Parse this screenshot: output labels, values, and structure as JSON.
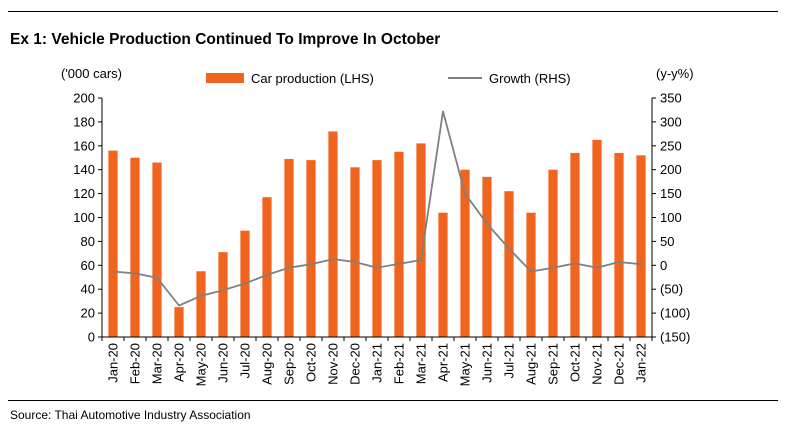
{
  "title": "Ex 1: Vehicle Production Continued To Improve In October",
  "source": "Source: Thai Automotive Industry Association",
  "colors": {
    "bar": "#f0641e",
    "line": "#808080",
    "axis": "#000000"
  },
  "chart_data": {
    "type": "bar",
    "title": "Ex 1: Vehicle Production Continued To Improve In October",
    "left_axis_unit": "('000 cars)",
    "right_axis_unit": "(y-y%)",
    "categories": [
      "Jan-20",
      "Feb-20",
      "Mar-20",
      "Apr-20",
      "May-20",
      "Jun-20",
      "Jul-20",
      "Aug-20",
      "Sep-20",
      "Oct-20",
      "Nov-20",
      "Dec-20",
      "Jan-21",
      "Feb-21",
      "Mar-21",
      "Apr-21",
      "May-21",
      "Jun-21",
      "Jul-21",
      "Aug-21",
      "Sep-21",
      "Oct-21",
      "Nov-21",
      "Dec-21",
      "Jan-22"
    ],
    "left_ylim": [
      0,
      200
    ],
    "left_ticks": [
      "0",
      "20",
      "40",
      "60",
      "80",
      "100",
      "120",
      "140",
      "160",
      "180",
      "200"
    ],
    "right_ylim": [
      -150,
      350
    ],
    "right_ticks": [
      "(150)",
      "(100)",
      "(50)",
      "0",
      "50",
      "100",
      "150",
      "200",
      "250",
      "300",
      "350"
    ],
    "legend_position": "top",
    "series": [
      {
        "name": "Car production (LHS)",
        "type": "bar",
        "axis": "left",
        "values": [
          156,
          150,
          146,
          25,
          55,
          71,
          89,
          117,
          149,
          148,
          172,
          142,
          148,
          155,
          162,
          104,
          140,
          134,
          122,
          104,
          140,
          154,
          165,
          154,
          152
        ]
      },
      {
        "name": "Growth (RHS)",
        "type": "line",
        "axis": "right",
        "values": [
          -13,
          -17,
          -26,
          -84,
          -64,
          -52,
          -38,
          -20,
          -5,
          2,
          13,
          7,
          -5,
          3,
          11,
          322,
          150,
          87,
          35,
          -13,
          -5,
          4,
          -5,
          7,
          2
        ]
      }
    ]
  }
}
